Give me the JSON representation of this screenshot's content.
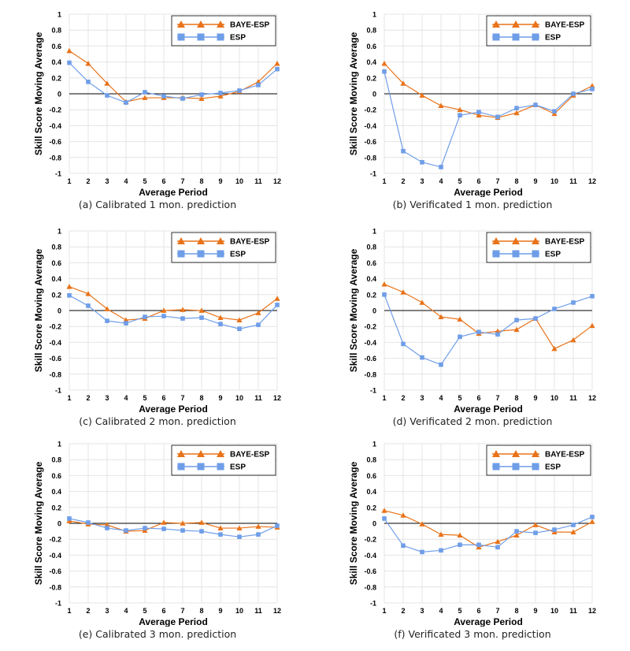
{
  "colors": {
    "baye": "#e8731a",
    "esp": "#6f9ee8",
    "grid": "#e4e4e4",
    "axis": "#000000"
  },
  "chart_data": [
    {
      "type": "line",
      "caption": "(a) Calibrated 1 mon. prediction",
      "xlabel": "Average Period",
      "ylabel": "Skill Score Moving Average",
      "x": [
        1,
        2,
        3,
        4,
        5,
        6,
        7,
        8,
        9,
        10,
        11,
        12
      ],
      "ylim": [
        -1,
        1
      ],
      "yticks": [
        "1",
        "0.8",
        "0.6",
        "0.4",
        "0.2",
        "0",
        "-0.2",
        "-0.4",
        "-0.6",
        "-0.8",
        "-1"
      ],
      "legend_position": "top-right",
      "series": [
        {
          "name": "BAYE-ESP",
          "values": [
            0.54,
            0.38,
            0.13,
            -0.1,
            -0.05,
            -0.05,
            -0.05,
            -0.06,
            -0.03,
            0.03,
            0.15,
            0.38
          ]
        },
        {
          "name": "ESP",
          "values": [
            0.39,
            0.15,
            -0.02,
            -0.11,
            0.02,
            -0.03,
            -0.06,
            -0.01,
            0.01,
            0.04,
            0.11,
            0.31
          ]
        }
      ]
    },
    {
      "type": "line",
      "caption": "(b) Verificated 1 mon. prediction",
      "xlabel": "Average Period",
      "ylabel": "Skill Score Moving Average",
      "x": [
        1,
        2,
        3,
        4,
        5,
        6,
        7,
        8,
        9,
        10,
        11,
        12
      ],
      "ylim": [
        -1,
        1
      ],
      "yticks": [
        "1",
        "0.8",
        "0.6",
        "0.4",
        "0.2",
        "0",
        "-0.2",
        "-0.4",
        "-0.6",
        "-0.8",
        "-1"
      ],
      "legend_position": "top-right",
      "series": [
        {
          "name": "BAYE-ESP",
          "values": [
            0.38,
            0.13,
            -0.02,
            -0.15,
            -0.2,
            -0.27,
            -0.3,
            -0.24,
            -0.14,
            -0.25,
            -0.02,
            0.1
          ]
        },
        {
          "name": "ESP",
          "values": [
            0.28,
            -0.72,
            -0.86,
            -0.92,
            -0.27,
            -0.23,
            -0.29,
            -0.18,
            -0.14,
            -0.22,
            0.0,
            0.06
          ]
        }
      ]
    },
    {
      "type": "line",
      "caption": "(c) Calibrated 2 mon. prediction",
      "xlabel": "Average Period",
      "ylabel": "Skill Score Moving Average",
      "x": [
        1,
        2,
        3,
        4,
        5,
        6,
        7,
        8,
        9,
        10,
        11,
        12
      ],
      "ylim": [
        -1,
        1
      ],
      "yticks": [
        "1",
        "0.8",
        "0.6",
        "0.4",
        "0.2",
        "0",
        "-0.2",
        "-0.4",
        "-0.6",
        "-0.8",
        "-1"
      ],
      "legend_position": "top-right",
      "series": [
        {
          "name": "BAYE-ESP",
          "values": [
            0.3,
            0.21,
            0.02,
            -0.12,
            -0.1,
            0.0,
            0.01,
            0.0,
            -0.09,
            -0.12,
            -0.03,
            0.15
          ]
        },
        {
          "name": "ESP",
          "values": [
            0.19,
            0.06,
            -0.13,
            -0.16,
            -0.08,
            -0.07,
            -0.1,
            -0.09,
            -0.17,
            -0.23,
            -0.18,
            0.07
          ]
        }
      ]
    },
    {
      "type": "line",
      "caption": "(d) Verificated 2 mon. prediction",
      "xlabel": "Average Period",
      "ylabel": "Skill Score Moving Average",
      "x": [
        1,
        2,
        3,
        4,
        5,
        6,
        7,
        8,
        9,
        10,
        11,
        12
      ],
      "ylim": [
        -1,
        1
      ],
      "yticks": [
        "1",
        "0.8",
        "0.6",
        "0.4",
        "0.2",
        "0",
        "-0.2",
        "-0.4",
        "-0.6",
        "-0.8",
        "-1"
      ],
      "legend_position": "top-right",
      "series": [
        {
          "name": "BAYE-ESP",
          "values": [
            0.33,
            0.23,
            0.1,
            -0.08,
            -0.11,
            -0.29,
            -0.26,
            -0.24,
            -0.1,
            -0.48,
            -0.37,
            -0.19
          ]
        },
        {
          "name": "ESP",
          "values": [
            0.2,
            -0.42,
            -0.59,
            -0.68,
            -0.33,
            -0.27,
            -0.3,
            -0.12,
            -0.1,
            0.02,
            0.1,
            0.18
          ]
        }
      ]
    },
    {
      "type": "line",
      "caption": "(e) Calibrated 3 mon. prediction",
      "xlabel": "Average Period",
      "ylabel": "Skill Score Moving Average",
      "x": [
        1,
        2,
        3,
        4,
        5,
        6,
        7,
        8,
        9,
        10,
        11,
        12
      ],
      "ylim": [
        -1,
        1
      ],
      "yticks": [
        "1",
        "0.8",
        "0.6",
        "0.4",
        "0.2",
        "0",
        "-0.2",
        "-0.4",
        "-0.6",
        "-0.8",
        "-1"
      ],
      "legend_position": "top-right",
      "series": [
        {
          "name": "BAYE-ESP",
          "values": [
            0.03,
            -0.01,
            -0.02,
            -0.1,
            -0.09,
            0.01,
            0.0,
            0.01,
            -0.06,
            -0.06,
            -0.04,
            -0.05
          ]
        },
        {
          "name": "ESP",
          "values": [
            0.06,
            0.01,
            -0.06,
            -0.09,
            -0.06,
            -0.07,
            -0.09,
            -0.1,
            -0.14,
            -0.17,
            -0.14,
            -0.03
          ]
        }
      ]
    },
    {
      "type": "line",
      "caption": "(f) Verificated 3 mon. prediction",
      "xlabel": "Average Period",
      "ylabel": "Skill Score Moving Average",
      "x": [
        1,
        2,
        3,
        4,
        5,
        6,
        7,
        8,
        9,
        10,
        11,
        12
      ],
      "ylim": [
        -1,
        1
      ],
      "yticks": [
        "1",
        "0.8",
        "0.6",
        "0.4",
        "0.2",
        "0",
        "-0.2",
        "-0.4",
        "-0.6",
        "-0.8",
        "-1"
      ],
      "legend_position": "top-right",
      "series": [
        {
          "name": "BAYE-ESP",
          "values": [
            0.16,
            0.1,
            -0.01,
            -0.14,
            -0.15,
            -0.3,
            -0.23,
            -0.15,
            -0.02,
            -0.11,
            -0.11,
            0.02
          ]
        },
        {
          "name": "ESP",
          "values": [
            0.06,
            -0.28,
            -0.36,
            -0.34,
            -0.27,
            -0.27,
            -0.3,
            -0.1,
            -0.12,
            -0.08,
            -0.02,
            0.08
          ]
        }
      ]
    }
  ]
}
